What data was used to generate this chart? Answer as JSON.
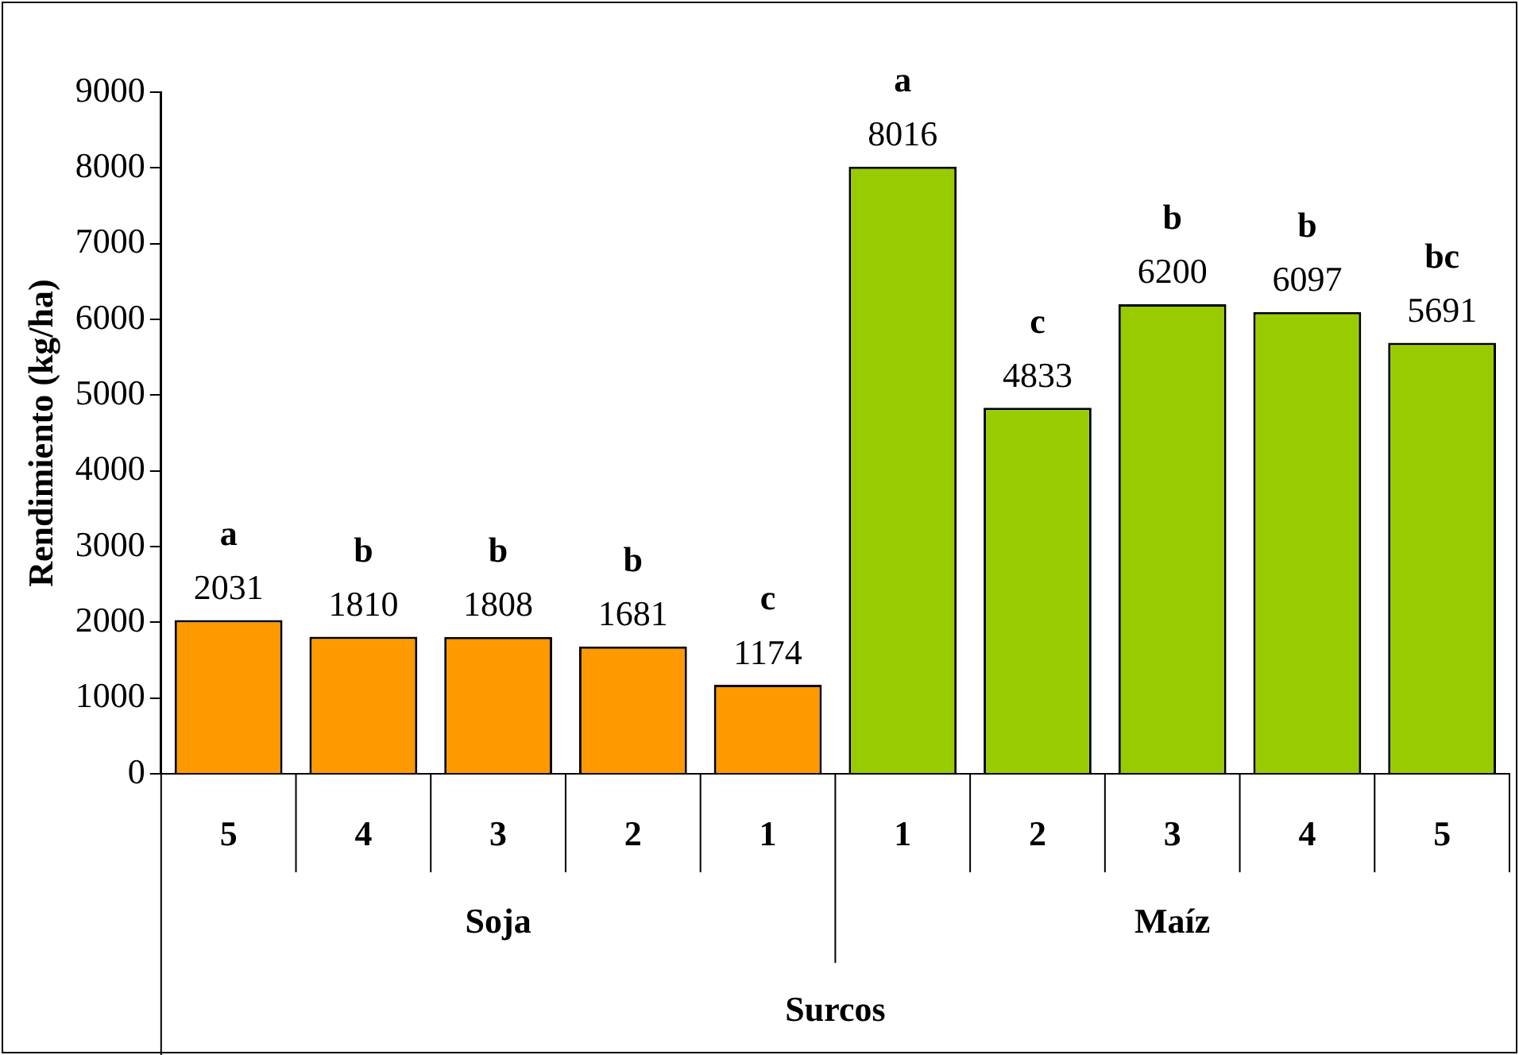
{
  "chart_data": {
    "type": "bar",
    "xlabel": "Surcos",
    "ylabel": "Rendimiento (kg/ha)",
    "categories": [
      "5",
      "4",
      "3",
      "2",
      "1",
      "1",
      "2",
      "3",
      "4",
      "5"
    ],
    "values": [
      2031,
      1810,
      1808,
      1681,
      1174,
      8016,
      4833,
      6200,
      6097,
      5691
    ],
    "colors": [
      "#ff9900",
      "#ff9900",
      "#ff9900",
      "#ff9900",
      "#ff9900",
      "#99cc00",
      "#99cc00",
      "#99cc00",
      "#99cc00",
      "#99cc00"
    ],
    "ylim": [
      0,
      9000
    ],
    "yticks": [
      0,
      1000,
      2000,
      3000,
      4000,
      5000,
      6000,
      7000,
      8000,
      9000
    ],
    "grid": false,
    "legend": false,
    "data_labels": true,
    "annotations": [
      {
        "text": "a",
        "y": 2031
      },
      {
        "text": "b",
        "y": 1810
      },
      {
        "text": "b",
        "y": 1808
      },
      {
        "text": "b",
        "y": 1681
      },
      {
        "text": "c",
        "y": 1174
      },
      {
        "text": "a",
        "y": 8016
      },
      {
        "text": "c",
        "y": 4833
      },
      {
        "text": "b",
        "y": 6200
      },
      {
        "text": "b",
        "y": 6097
      },
      {
        "text": "bc",
        "y": 5691
      },
      "Soja",
      "Maíz"
    ]
  }
}
